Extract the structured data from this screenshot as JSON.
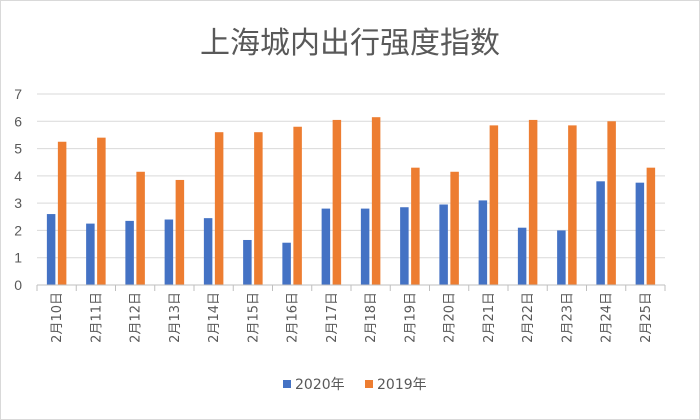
{
  "chart_data": {
    "type": "bar",
    "title": "上海城内出行强度指数",
    "xlabel": "",
    "ylabel": "",
    "ylim": [
      0,
      7
    ],
    "yticks": [
      0,
      1,
      2,
      3,
      4,
      5,
      6,
      7
    ],
    "grid": true,
    "legend_position": "bottom",
    "categories": [
      "2月10日",
      "2月11日",
      "2月12日",
      "2月13日",
      "2月14日",
      "2月15日",
      "2月16日",
      "2月17日",
      "2月18日",
      "2月19日",
      "2月20日",
      "2月21日",
      "2月22日",
      "2月23日",
      "2月24日",
      "2月25日"
    ],
    "series": [
      {
        "name": "2020年",
        "color": "#4472c4",
        "values": [
          2.6,
          2.25,
          2.35,
          2.4,
          2.45,
          1.65,
          1.55,
          2.8,
          2.8,
          2.85,
          2.95,
          3.1,
          2.1,
          2.0,
          3.8,
          3.75
        ]
      },
      {
        "name": "2019年",
        "color": "#ed7d31",
        "values": [
          5.25,
          5.4,
          4.15,
          3.85,
          5.6,
          5.6,
          5.8,
          6.05,
          6.15,
          4.3,
          4.15,
          5.85,
          6.05,
          5.85,
          6.0,
          4.3
        ]
      }
    ]
  }
}
